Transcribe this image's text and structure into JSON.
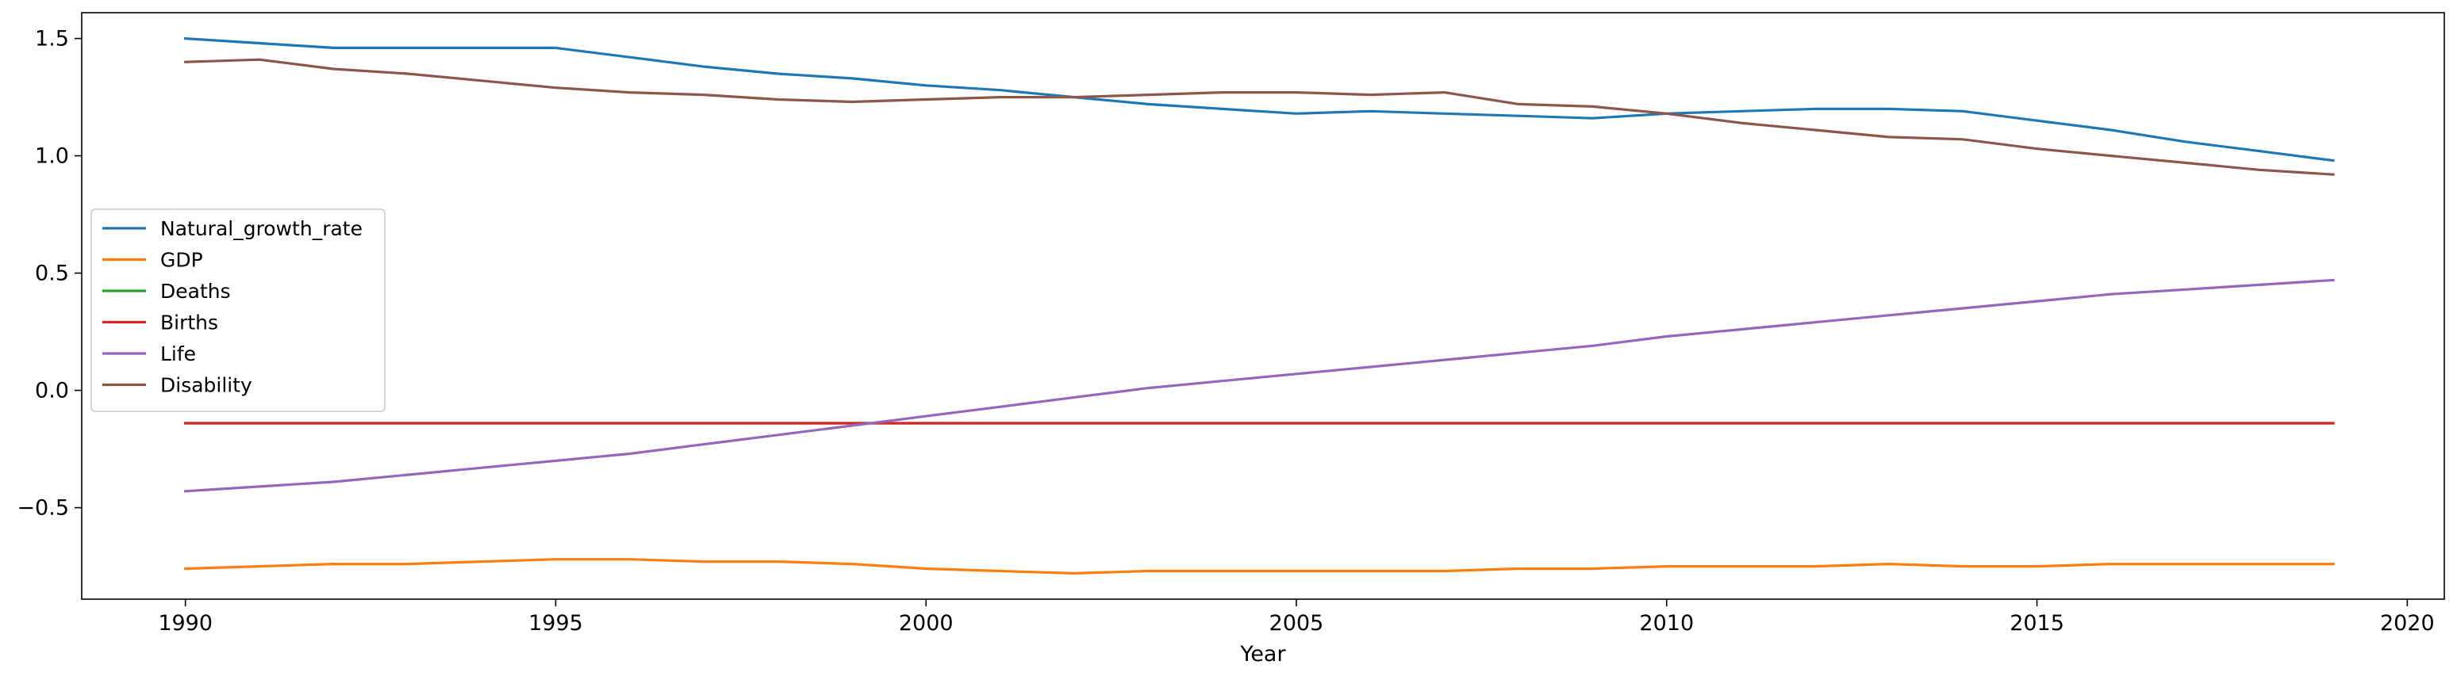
{
  "chart_data": {
    "type": "line",
    "title": "",
    "xlabel": "Year",
    "ylabel": "",
    "xlim": [
      1988.6,
      2020.5
    ],
    "ylim": [
      -0.89,
      1.61
    ],
    "grid": false,
    "legend_position": "center-left",
    "x_ticks": [
      1990,
      1995,
      2000,
      2005,
      2010,
      2015,
      2020
    ],
    "y_ticks": [
      -0.5,
      0.0,
      0.5,
      1.0,
      1.5
    ],
    "y_tick_labels": [
      "−0.5",
      "0.0",
      "0.5",
      "1.0",
      "1.5"
    ],
    "x": [
      1990,
      1991,
      1992,
      1993,
      1994,
      1995,
      1996,
      1997,
      1998,
      1999,
      2000,
      2001,
      2002,
      2003,
      2004,
      2005,
      2006,
      2007,
      2008,
      2009,
      2010,
      2011,
      2012,
      2013,
      2014,
      2015,
      2016,
      2017,
      2018,
      2019
    ],
    "series": [
      {
        "name": "Natural_growth_rate",
        "color": "#1f77b4",
        "values": [
          1.5,
          1.48,
          1.46,
          1.46,
          1.46,
          1.46,
          1.42,
          1.38,
          1.35,
          1.33,
          1.3,
          1.28,
          1.25,
          1.22,
          1.2,
          1.18,
          1.19,
          1.18,
          1.17,
          1.16,
          1.18,
          1.19,
          1.2,
          1.2,
          1.19,
          1.15,
          1.11,
          1.06,
          1.02,
          0.98
        ]
      },
      {
        "name": "GDP",
        "color": "#ff7f0e",
        "values": [
          -0.76,
          -0.75,
          -0.74,
          -0.74,
          -0.73,
          -0.72,
          -0.72,
          -0.73,
          -0.73,
          -0.74,
          -0.76,
          -0.77,
          -0.78,
          -0.77,
          -0.77,
          -0.77,
          -0.77,
          -0.77,
          -0.76,
          -0.76,
          -0.75,
          -0.75,
          -0.75,
          -0.74,
          -0.75,
          -0.75,
          -0.74,
          -0.74,
          -0.74,
          -0.74
        ]
      },
      {
        "name": "Deaths",
        "color": "#2ca02c",
        "values": [
          -0.14,
          -0.14,
          -0.14,
          -0.14,
          -0.14,
          -0.14,
          -0.14,
          -0.14,
          -0.14,
          -0.14,
          -0.14,
          -0.14,
          -0.14,
          -0.14,
          -0.14,
          -0.14,
          -0.14,
          -0.14,
          -0.14,
          -0.14,
          -0.14,
          -0.14,
          -0.14,
          -0.14,
          -0.14,
          -0.14,
          -0.14,
          -0.14,
          -0.14,
          -0.14
        ]
      },
      {
        "name": "Births",
        "color": "#d62728",
        "values": [
          -0.14,
          -0.14,
          -0.14,
          -0.14,
          -0.14,
          -0.14,
          -0.14,
          -0.14,
          -0.14,
          -0.14,
          -0.14,
          -0.14,
          -0.14,
          -0.14,
          -0.14,
          -0.14,
          -0.14,
          -0.14,
          -0.14,
          -0.14,
          -0.14,
          -0.14,
          -0.14,
          -0.14,
          -0.14,
          -0.14,
          -0.14,
          -0.14,
          -0.14,
          -0.14
        ]
      },
      {
        "name": "Life",
        "color": "#9467bd",
        "values": [
          -0.43,
          -0.41,
          -0.39,
          -0.36,
          -0.33,
          -0.3,
          -0.27,
          -0.23,
          -0.19,
          -0.15,
          -0.11,
          -0.07,
          -0.03,
          0.01,
          0.04,
          0.07,
          0.1,
          0.13,
          0.16,
          0.19,
          0.23,
          0.26,
          0.29,
          0.32,
          0.35,
          0.38,
          0.41,
          0.43,
          0.45,
          0.47
        ]
      },
      {
        "name": "Disability",
        "color": "#8c564b",
        "values": [
          1.4,
          1.41,
          1.37,
          1.35,
          1.32,
          1.29,
          1.27,
          1.26,
          1.24,
          1.23,
          1.24,
          1.25,
          1.25,
          1.26,
          1.27,
          1.27,
          1.26,
          1.27,
          1.22,
          1.21,
          1.18,
          1.14,
          1.11,
          1.08,
          1.07,
          1.03,
          1.0,
          0.97,
          0.94,
          0.92
        ]
      }
    ]
  }
}
